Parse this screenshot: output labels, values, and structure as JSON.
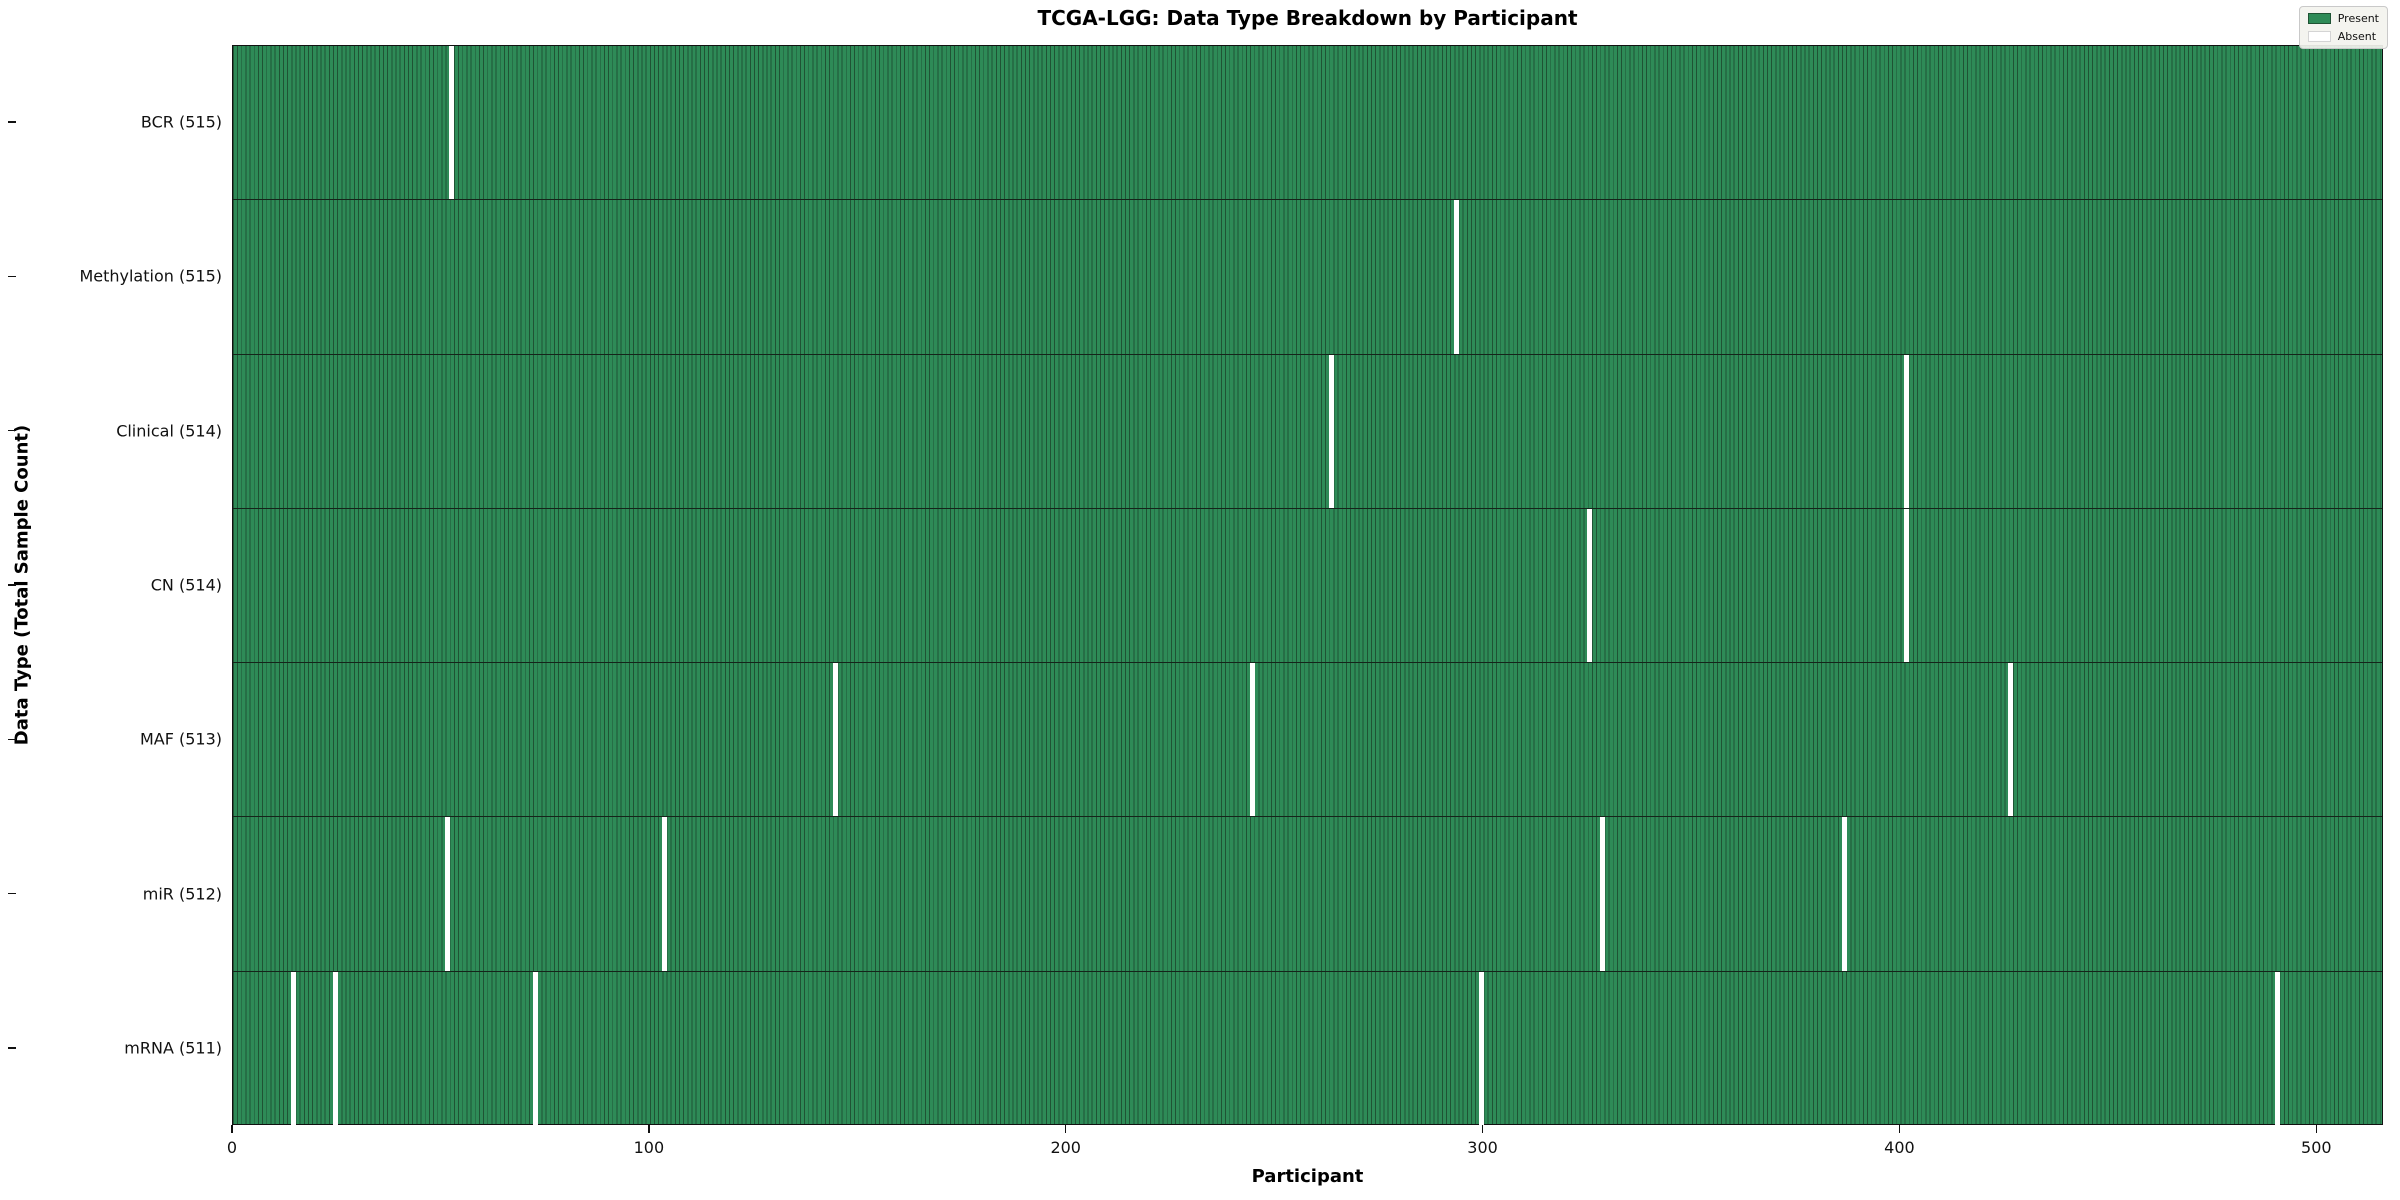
{
  "title": "TCGA-LGG: Data Type Breakdown by Participant",
  "chart_data": {
    "type": "heatmap",
    "title": "TCGA-LGG: Data Type Breakdown by Participant",
    "xlabel": "Participant",
    "ylabel": "Data Type (Total Sample Count)",
    "x_ticks": [
      0,
      100,
      200,
      300,
      400,
      500
    ],
    "x_range": [
      0,
      516
    ],
    "total_participants": 516,
    "grid": false,
    "legend_position": "upper right",
    "legend": {
      "entries": [
        {
          "label": "Present",
          "color": "#2e8b57"
        },
        {
          "label": "Absent",
          "color": "#ffffff"
        }
      ]
    },
    "rows": [
      {
        "label": "BCR (515)",
        "present_count": 515,
        "absent_participants": [
          52
        ]
      },
      {
        "label": "Methylation (515)",
        "present_count": 515,
        "absent_participants": [
          293
        ]
      },
      {
        "label": "Clinical (514)",
        "present_count": 514,
        "absent_participants": [
          263,
          401
        ]
      },
      {
        "label": "CN (514)",
        "present_count": 514,
        "absent_participants": [
          325,
          401
        ]
      },
      {
        "label": "MAF (513)",
        "present_count": 513,
        "absent_participants": [
          144,
          244,
          426
        ]
      },
      {
        "label": "miR (512)",
        "present_count": 512,
        "absent_participants": [
          51,
          103,
          328,
          386
        ]
      },
      {
        "label": "mRNA (511)",
        "present_count": 511,
        "absent_participants": [
          14,
          24,
          72,
          299,
          490
        ]
      }
    ],
    "colors": {
      "present_fill": "#2e8b57",
      "bar_edge": "#1f5334",
      "absent_fill": "#ffffff",
      "row_divider": "#15241a",
      "axis_spine": "#111111",
      "legend_background": "#f3f3ee",
      "legend_border": "#c9c9c9"
    }
  }
}
